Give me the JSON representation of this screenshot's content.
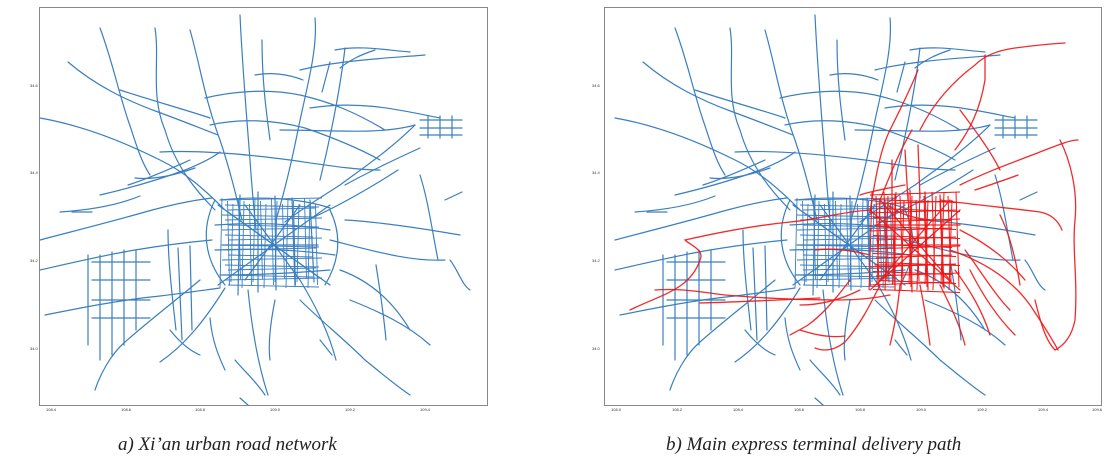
{
  "panels": [
    {
      "caption": "a) Xi’an urban road network",
      "xticks": [
        "108.4",
        "108.6",
        "108.8",
        "109.0",
        "109.2",
        "109.4"
      ],
      "yticks": [
        "34.6",
        "34.4",
        "34.2",
        "34.0"
      ],
      "colors": {
        "roads": "#3a7fc0"
      },
      "layers": [
        "roads"
      ]
    },
    {
      "caption": "b) Main express terminal delivery path",
      "xticks": [
        "108.0",
        "108.2",
        "108.4",
        "108.6",
        "108.8",
        "109.0",
        "109.2",
        "109.4",
        "109.6"
      ],
      "yticks": [
        "34.6",
        "34.4",
        "34.2",
        "34.0"
      ],
      "colors": {
        "roads": "#3a7fc0",
        "paths": "#f01414"
      },
      "layers": [
        "roads",
        "paths"
      ]
    }
  ]
}
